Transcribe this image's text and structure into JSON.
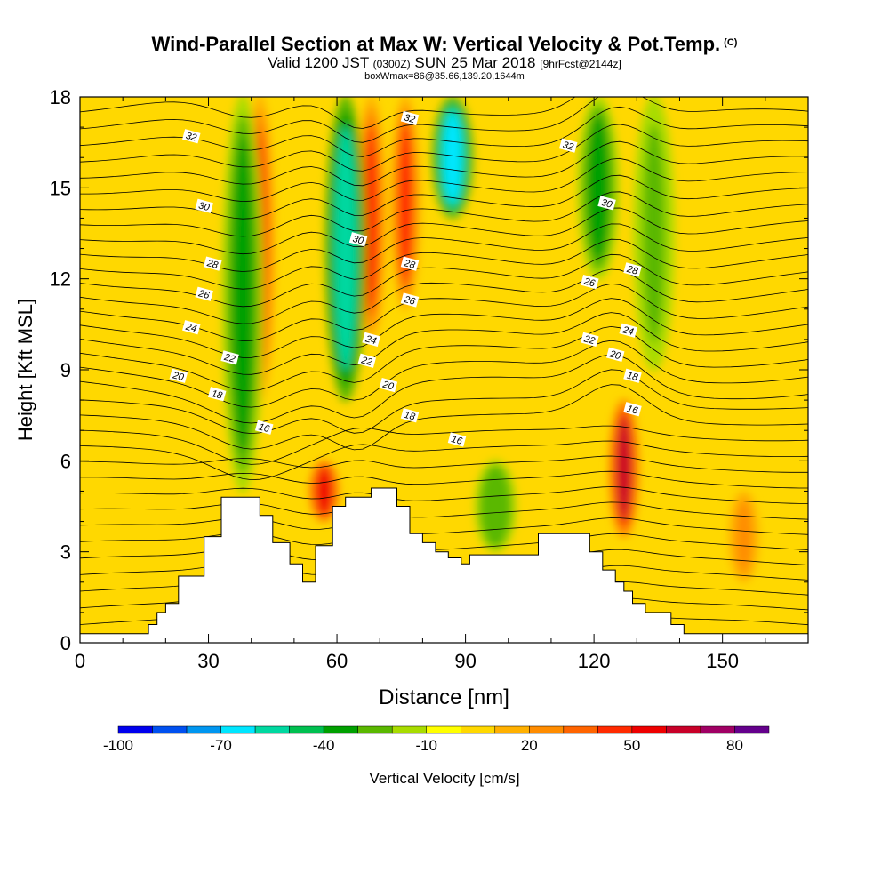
{
  "title": {
    "main": "Wind-Parallel Section at Max W: Vertical Velocity & Pot.Temp.",
    "copyright": "(C)",
    "valid_prefix": "Valid 1200 JST",
    "valid_utc": "(0300Z)",
    "valid_date": "SUN 25 Mar 2018",
    "valid_forecast": "[9hrFcst@2144z]",
    "subtitle": "boxWmax=86@35.66,139.20,1644m"
  },
  "chart_data": {
    "type": "heatmap",
    "xlabel": "Distance [nm]",
    "ylabel": "Height [Kft MSL]",
    "xlim": [
      0,
      170
    ],
    "ylim": [
      0,
      18
    ],
    "x_ticks": [
      "0",
      "30",
      "60",
      "90",
      "120",
      "150"
    ],
    "y_ticks": [
      "0",
      "3",
      "6",
      "9",
      "12",
      "15",
      "18"
    ],
    "terrain_kft": [
      [
        0,
        0.3
      ],
      [
        16,
        0.6
      ],
      [
        18,
        1.0
      ],
      [
        20,
        1.3
      ],
      [
        23,
        2.2
      ],
      [
        29,
        3.5
      ],
      [
        33,
        4.8
      ],
      [
        42,
        4.2
      ],
      [
        45,
        3.3
      ],
      [
        49,
        2.6
      ],
      [
        52,
        2.0
      ],
      [
        55,
        3.2
      ],
      [
        59,
        4.5
      ],
      [
        62,
        4.8
      ],
      [
        68,
        5.1
      ],
      [
        74,
        4.5
      ],
      [
        77,
        3.6
      ],
      [
        80,
        3.3
      ],
      [
        83,
        3.0
      ],
      [
        86,
        2.8
      ],
      [
        89,
        2.6
      ],
      [
        91,
        2.9
      ],
      [
        107,
        3.6
      ],
      [
        116,
        3.6
      ],
      [
        119,
        3.0
      ],
      [
        122,
        2.4
      ],
      [
        125,
        2.0
      ],
      [
        127,
        1.7
      ],
      [
        129,
        1.3
      ],
      [
        132,
        1.0
      ],
      [
        138,
        0.6
      ],
      [
        141,
        0.3
      ],
      [
        170,
        0.3
      ]
    ],
    "vertical_velocity_features": [
      {
        "kind": "updraft",
        "x": 42,
        "ymin": 8,
        "ymax": 18,
        "peak_cms": 45
      },
      {
        "kind": "updraft",
        "x": 57,
        "ymin": 4,
        "ymax": 6,
        "peak_cms": 55
      },
      {
        "kind": "updraft",
        "x": 68,
        "ymin": 10,
        "ymax": 18,
        "peak_cms": 45
      },
      {
        "kind": "updraft",
        "x": 76,
        "ymin": 11,
        "ymax": 18,
        "peak_cms": 45
      },
      {
        "kind": "updraft",
        "x": 127,
        "ymin": 3.5,
        "ymax": 8,
        "peak_cms": 60
      },
      {
        "kind": "updraft",
        "x": 155,
        "ymin": 2,
        "ymax": 5,
        "peak_cms": 25
      },
      {
        "kind": "downdraft",
        "x": 38,
        "ymin": 5,
        "ymax": 18,
        "peak_cms": -40
      },
      {
        "kind": "downdraft",
        "x": 62,
        "ymin": 8,
        "ymax": 18,
        "peak_cms": -60
      },
      {
        "kind": "downdraft",
        "x": 87,
        "ymin": 14,
        "ymax": 18,
        "peak_cms": -65
      },
      {
        "kind": "downdraft",
        "x": 121,
        "ymin": 12,
        "ymax": 18,
        "peak_cms": -40
      },
      {
        "kind": "downdraft",
        "x": 97,
        "ymin": 3,
        "ymax": 6,
        "peak_cms": -30
      },
      {
        "kind": "downdraft",
        "x": 134,
        "ymin": 9,
        "ymax": 18,
        "peak_cms": -25
      }
    ],
    "theta_contour_labels": [
      {
        "x": 26,
        "y": 16.7,
        "text": "32"
      },
      {
        "x": 77,
        "y": 17.3,
        "text": "32"
      },
      {
        "x": 114,
        "y": 16.4,
        "text": "32"
      },
      {
        "x": 29,
        "y": 14.4,
        "text": "30"
      },
      {
        "x": 65,
        "y": 13.3,
        "text": "30"
      },
      {
        "x": 123,
        "y": 14.5,
        "text": "30"
      },
      {
        "x": 31,
        "y": 12.5,
        "text": "28"
      },
      {
        "x": 77,
        "y": 12.5,
        "text": "28"
      },
      {
        "x": 129,
        "y": 12.3,
        "text": "28"
      },
      {
        "x": 29,
        "y": 11.5,
        "text": "26"
      },
      {
        "x": 77,
        "y": 11.3,
        "text": "26"
      },
      {
        "x": 119,
        "y": 11.9,
        "text": "26"
      },
      {
        "x": 26,
        "y": 10.4,
        "text": "24"
      },
      {
        "x": 68,
        "y": 10.0,
        "text": "24"
      },
      {
        "x": 128,
        "y": 10.3,
        "text": "24"
      },
      {
        "x": 35,
        "y": 9.4,
        "text": "22"
      },
      {
        "x": 67,
        "y": 9.3,
        "text": "22"
      },
      {
        "x": 119,
        "y": 10.0,
        "text": "22"
      },
      {
        "x": 23,
        "y": 8.8,
        "text": "20"
      },
      {
        "x": 72,
        "y": 8.5,
        "text": "20"
      },
      {
        "x": 125,
        "y": 9.5,
        "text": "20"
      },
      {
        "x": 32,
        "y": 8.2,
        "text": "18"
      },
      {
        "x": 77,
        "y": 7.5,
        "text": "18"
      },
      {
        "x": 129,
        "y": 8.8,
        "text": "18"
      },
      {
        "x": 43,
        "y": 7.1,
        "text": "16"
      },
      {
        "x": 88,
        "y": 6.7,
        "text": "16"
      },
      {
        "x": 129,
        "y": 7.7,
        "text": "16"
      }
    ],
    "colorbar": {
      "label": "Vertical Velocity [cm/s]",
      "tick_labels": [
        "-100",
        "-70",
        "-40",
        "-10",
        "20",
        "50",
        "80"
      ],
      "range": [
        -100,
        90
      ],
      "step": 10,
      "colors": [
        "#0000ee",
        "#0050f0",
        "#0096f0",
        "#00e6ff",
        "#00d8a0",
        "#00c050",
        "#00a000",
        "#5ab800",
        "#a8dc00",
        "#ffff00",
        "#ffd800",
        "#ffb000",
        "#ff8c00",
        "#ff6400",
        "#ff2a00",
        "#ee0000",
        "#c80028",
        "#a00064",
        "#64008c"
      ]
    }
  }
}
